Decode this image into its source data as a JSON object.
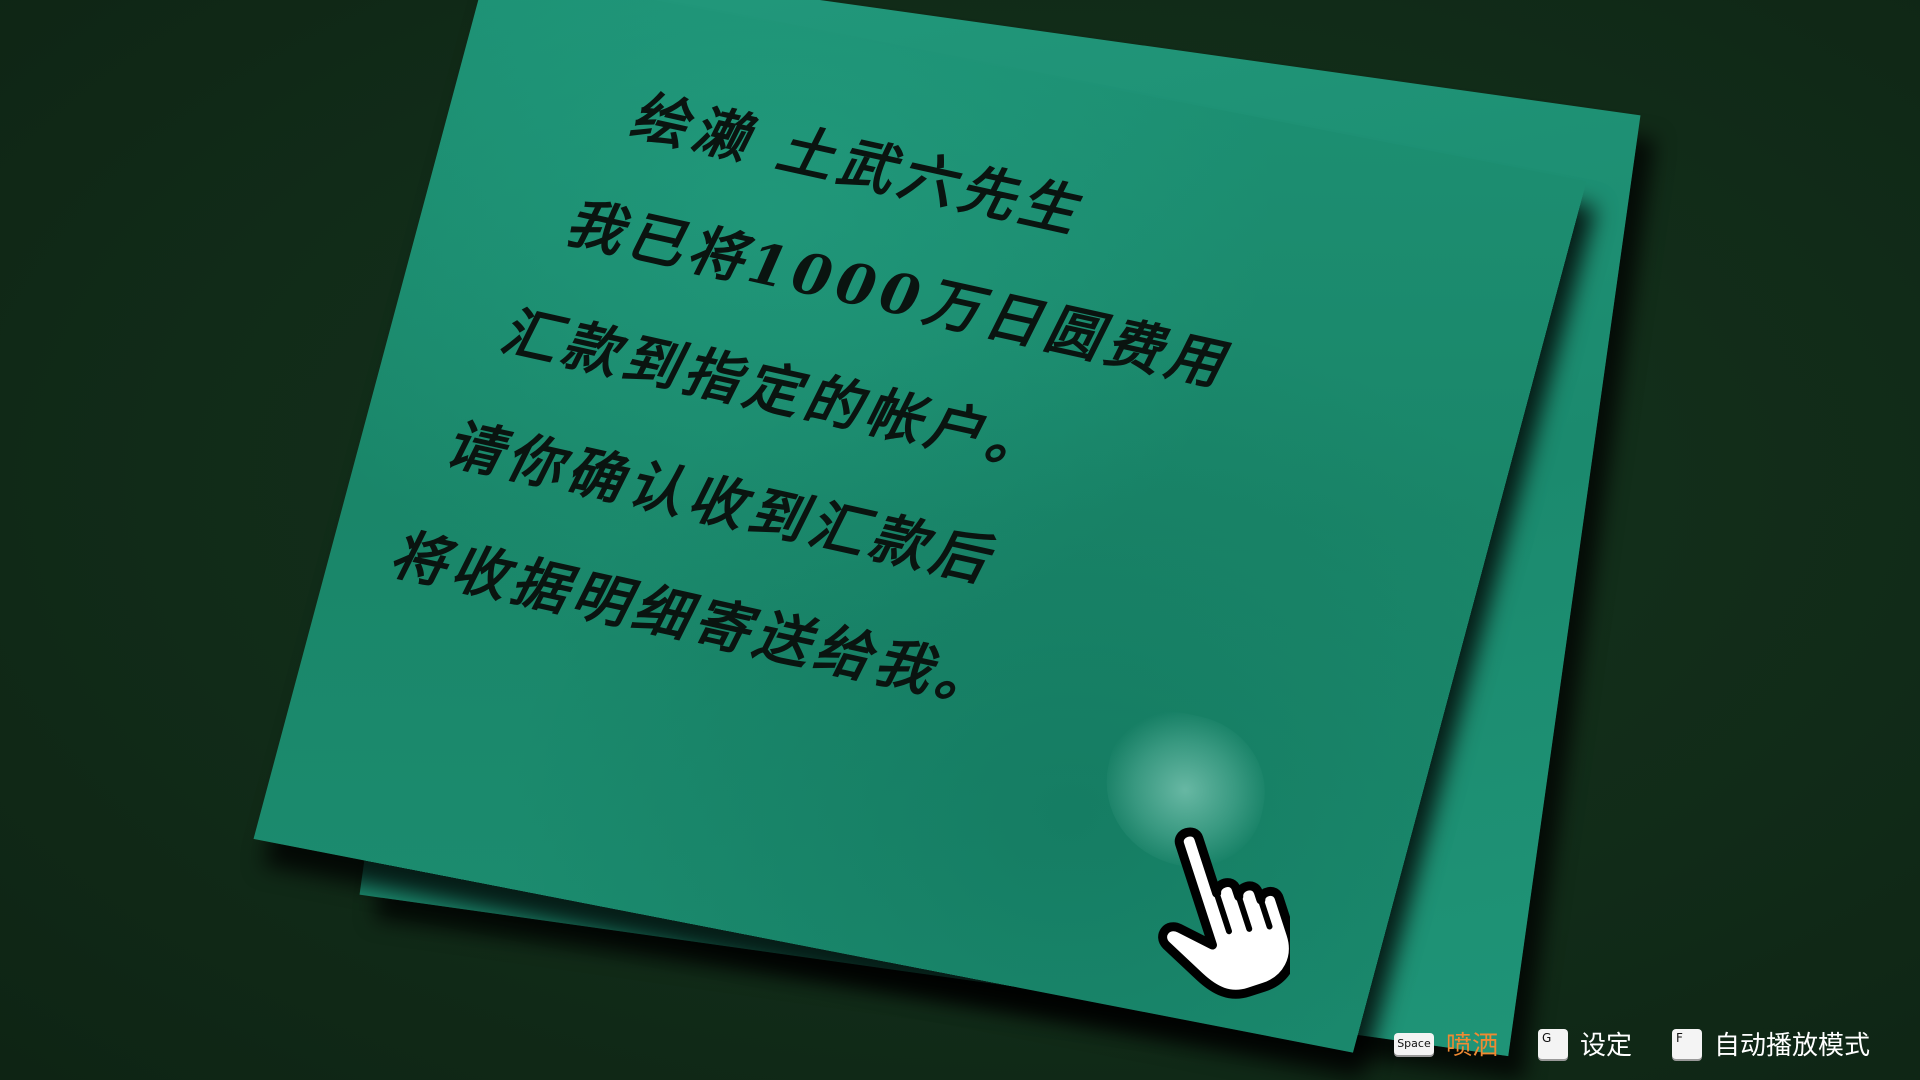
{
  "letter": {
    "lines": [
      "绘濑 土武六先生",
      "我已将1000万日圆费用",
      "汇款到指定的帐户。",
      "请你确认收到汇款后",
      "将收据明细寄送给我。"
    ]
  },
  "hints": [
    {
      "key": "Space",
      "label": "喷洒",
      "accent": true
    },
    {
      "key": "G",
      "label": "设定",
      "accent": false
    },
    {
      "key": "F",
      "label": "自动播放模式",
      "accent": false
    }
  ],
  "colors": {
    "background": "#112b18",
    "paper": "#1b8a6e",
    "ink": "#0a1410",
    "accent_label": "#f08a32"
  },
  "icons": {
    "cursor": "pointing-hand-icon"
  }
}
